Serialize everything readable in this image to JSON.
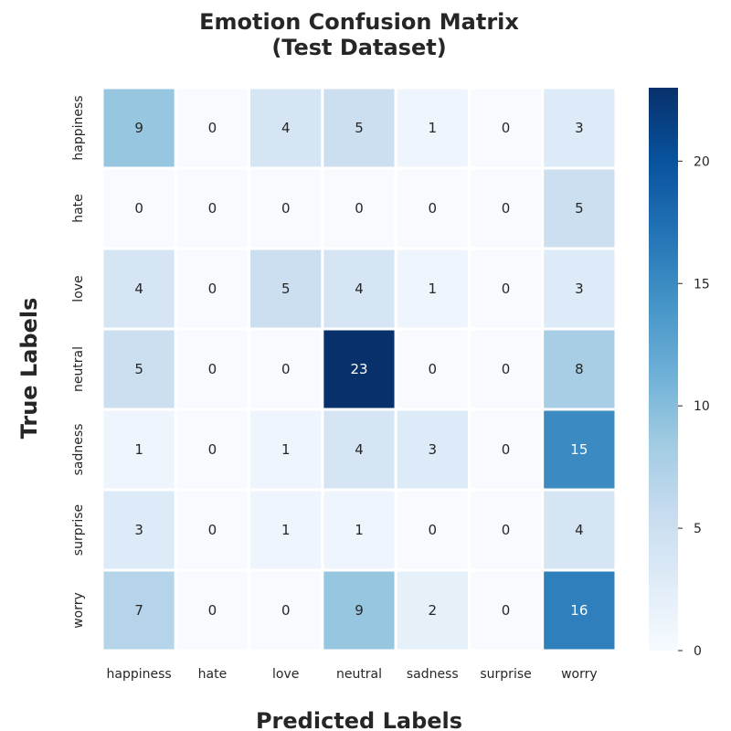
{
  "chart_data": {
    "type": "heatmap",
    "title_lines": [
      "Emotion Confusion Matrix",
      "(Test Dataset)"
    ],
    "xlabel": "Predicted Labels",
    "ylabel": "True Labels",
    "x_categories": [
      "happiness",
      "hate",
      "love",
      "neutral",
      "sadness",
      "surprise",
      "worry"
    ],
    "y_categories": [
      "happiness",
      "hate",
      "love",
      "neutral",
      "sadness",
      "surprise",
      "worry"
    ],
    "values": [
      [
        9,
        0,
        4,
        5,
        1,
        0,
        3
      ],
      [
        0,
        0,
        0,
        0,
        0,
        0,
        5
      ],
      [
        4,
        0,
        5,
        4,
        1,
        0,
        3
      ],
      [
        5,
        0,
        0,
        23,
        0,
        0,
        8
      ],
      [
        1,
        0,
        1,
        4,
        3,
        0,
        15
      ],
      [
        3,
        0,
        1,
        1,
        0,
        0,
        4
      ],
      [
        7,
        0,
        0,
        9,
        2,
        0,
        16
      ]
    ],
    "colormap": "Blues",
    "vmin": 0,
    "vmax": 23,
    "colorbar_ticks": [
      "0",
      "5",
      "10",
      "15",
      "20"
    ],
    "colors": {
      "low": "#f7fbff",
      "high": "#08306b",
      "cell_border": "#ffffff",
      "text_dark": "#262626",
      "text_light": "#ffffff"
    }
  }
}
